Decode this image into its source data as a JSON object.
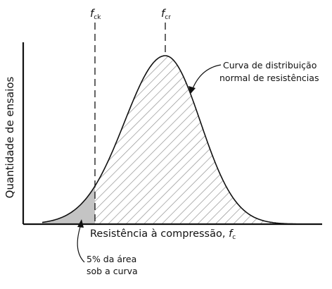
{
  "diagram": {
    "y_axis_label": "Quantidade de ensaios",
    "x_axis_label": "Resistência à compressão, ",
    "x_axis_symbol": "f",
    "x_axis_symbol_sub": "c",
    "marker_fck": {
      "symbol": "f",
      "sub": "ck"
    },
    "marker_fcm": {
      "symbol": "f",
      "sub": "cr"
    },
    "curve_callout": [
      "Curva de distribuição",
      "normal de resistências"
    ],
    "tail_callout": [
      "5% da área",
      "sob a curva"
    ],
    "tail_fraction_percent": 5,
    "colors": {
      "line": "#111111",
      "hatch": "#8a8a8a",
      "tail_fill": "#c4c4c4",
      "background": "#ffffff"
    }
  }
}
